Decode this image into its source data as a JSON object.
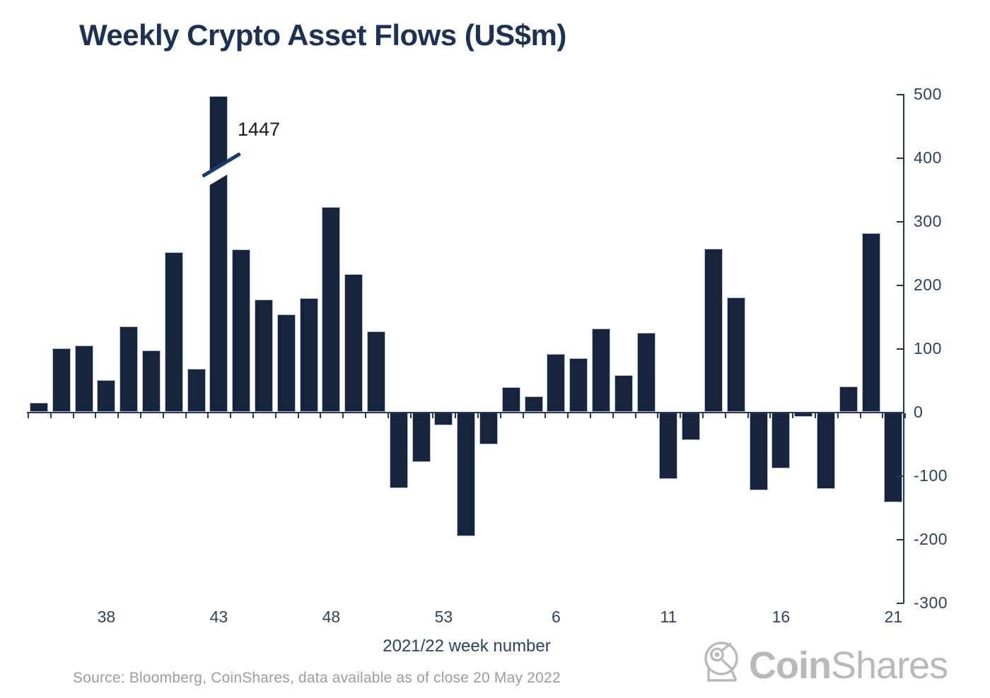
{
  "title": "Weekly Crypto Asset Flows (US$m)",
  "chart_data": {
    "type": "bar",
    "title": "Weekly Crypto Asset Flows (US$m)",
    "xlabel": "2021/22 week number",
    "ylabel": "",
    "ylim": [
      -300,
      500
    ],
    "grid": false,
    "legend": false,
    "axis_side": "right",
    "bar_color": "dark navy",
    "x_week_labels": [
      35,
      36,
      37,
      38,
      39,
      40,
      41,
      42,
      43,
      44,
      45,
      46,
      47,
      48,
      49,
      50,
      51,
      52,
      53,
      2,
      3,
      4,
      5,
      6,
      7,
      8,
      9,
      10,
      11,
      12,
      13,
      14,
      15,
      16,
      17,
      18,
      19,
      20,
      21
    ],
    "values": [
      15,
      100,
      104,
      50,
      134,
      97,
      251,
      68,
      1447,
      256,
      177,
      153,
      179,
      322,
      217,
      127,
      -119,
      -78,
      -20,
      -194,
      -50,
      39,
      24,
      91,
      85,
      131,
      58,
      124,
      -104,
      -43,
      257,
      180,
      -122,
      -88,
      -7,
      -120,
      40,
      281,
      -141
    ],
    "y_ticks": [
      500,
      400,
      300,
      200,
      100,
      0,
      -100,
      -200,
      -300
    ],
    "x_axis_tick_labels": [
      "38",
      "43",
      "48",
      "53",
      "6",
      "11",
      "16",
      "21"
    ],
    "x_axis_tick_indices": [
      3,
      8,
      13,
      18,
      23,
      28,
      33,
      38
    ],
    "truncated_bar": {
      "index": 8,
      "true_value": 1447,
      "display_cap": 497,
      "label": "1447",
      "note": "bar exceeds axis max; shown with axis-break slash"
    }
  },
  "footer": {
    "source": "Source: Bloomberg, CoinShares, data available as of close 20 May 2022"
  },
  "logo": {
    "bold": "Coin",
    "light": "Shares"
  },
  "colors": {
    "bar_fill": "#16243E",
    "bar_stroke": "#B6C0D2",
    "axis": "#223A5E",
    "tick_label": "#2C4166",
    "title": "#1C3156",
    "annotation_text": "#1A1A1A",
    "break_stroke": "#1B3A70",
    "source_text": "#9C9C9C",
    "logo_gray": "#B9B9B9"
  }
}
